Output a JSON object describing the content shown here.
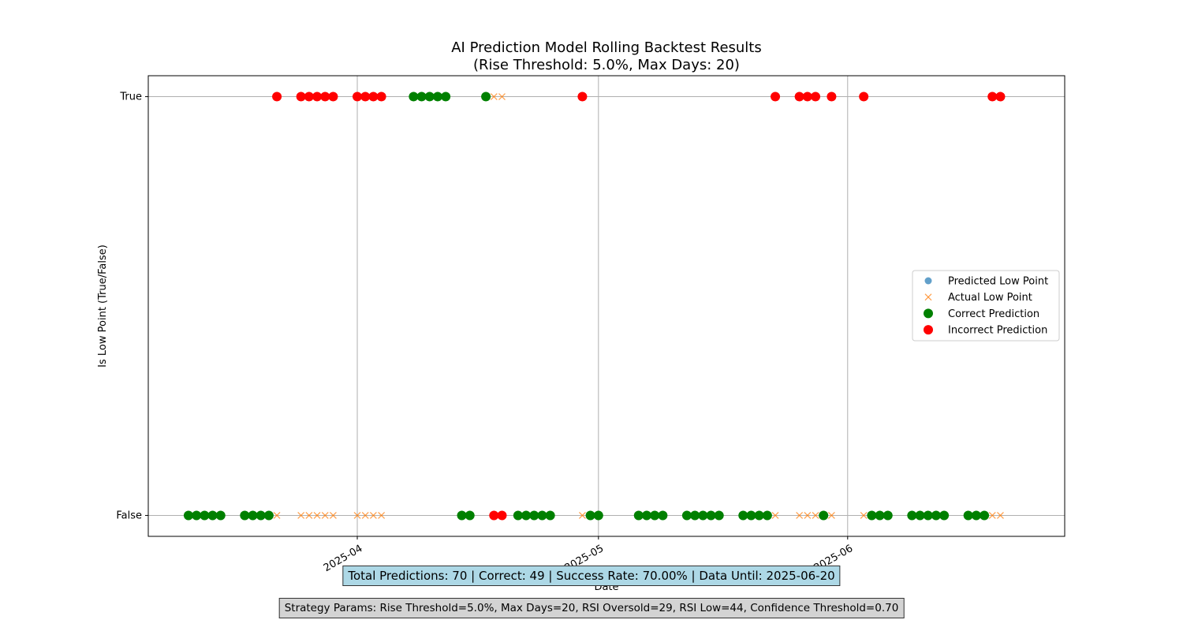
{
  "chart_data": {
    "type": "scatter",
    "title": "AI Prediction Model Rolling Backtest Results",
    "subtitle": "(Rise Threshold: 5.0%, Max Days: 20)",
    "xlabel": "Date",
    "ylabel": "Is Low Point (True/False)",
    "x_axis_type": "date",
    "xlim": [
      "2025-03-06",
      "2025-06-28"
    ],
    "ylim": [
      -0.05,
      1.05
    ],
    "x_ticks": [
      "2025-04-01",
      "2025-05-01",
      "2025-06-01"
    ],
    "x_tick_labels": [
      "2025-04",
      "2025-05",
      "2025-06"
    ],
    "y_ticks": [
      0,
      1
    ],
    "y_tick_labels": [
      "False",
      "True"
    ],
    "grid": true,
    "legend_placement": "center-right",
    "legend": [
      {
        "label": "Predicted Low Point",
        "marker": "circle-small",
        "color": "#1f77b4"
      },
      {
        "label": "Actual Low Point",
        "marker": "x",
        "color": "#ff7f0e"
      },
      {
        "label": "Correct Prediction",
        "marker": "circle",
        "color": "#008000"
      },
      {
        "label": "Incorrect Prediction",
        "marker": "circle",
        "color": "#ff0000"
      }
    ],
    "series": [
      {
        "name": "Predicted Low Point",
        "color": "#1f77b4",
        "points": [
          {
            "x": "2025-03-11",
            "y": false
          },
          {
            "x": "2025-03-12",
            "y": false
          },
          {
            "x": "2025-03-13",
            "y": false
          },
          {
            "x": "2025-03-14",
            "y": false
          },
          {
            "x": "2025-03-15",
            "y": false
          },
          {
            "x": "2025-03-18",
            "y": false
          },
          {
            "x": "2025-03-19",
            "y": false
          },
          {
            "x": "2025-03-20",
            "y": false
          },
          {
            "x": "2025-03-21",
            "y": false
          },
          {
            "x": "2025-03-22",
            "y": true
          },
          {
            "x": "2025-03-25",
            "y": true
          },
          {
            "x": "2025-03-26",
            "y": true
          },
          {
            "x": "2025-03-27",
            "y": true
          },
          {
            "x": "2025-03-28",
            "y": true
          },
          {
            "x": "2025-03-29",
            "y": true
          },
          {
            "x": "2025-04-01",
            "y": true
          },
          {
            "x": "2025-04-02",
            "y": true
          },
          {
            "x": "2025-04-03",
            "y": true
          },
          {
            "x": "2025-04-04",
            "y": true
          },
          {
            "x": "2025-04-08",
            "y": true
          },
          {
            "x": "2025-04-09",
            "y": true
          },
          {
            "x": "2025-04-10",
            "y": true
          },
          {
            "x": "2025-04-11",
            "y": true
          },
          {
            "x": "2025-04-12",
            "y": true
          },
          {
            "x": "2025-04-14",
            "y": false
          },
          {
            "x": "2025-04-15",
            "y": false
          },
          {
            "x": "2025-04-17",
            "y": true
          },
          {
            "x": "2025-04-18",
            "y": false
          },
          {
            "x": "2025-04-19",
            "y": false
          },
          {
            "x": "2025-04-21",
            "y": false
          },
          {
            "x": "2025-04-22",
            "y": false
          },
          {
            "x": "2025-04-23",
            "y": false
          },
          {
            "x": "2025-04-24",
            "y": false
          },
          {
            "x": "2025-04-25",
            "y": false
          },
          {
            "x": "2025-04-29",
            "y": true
          },
          {
            "x": "2025-04-30",
            "y": false
          },
          {
            "x": "2025-05-01",
            "y": false
          },
          {
            "x": "2025-05-06",
            "y": false
          },
          {
            "x": "2025-05-07",
            "y": false
          },
          {
            "x": "2025-05-08",
            "y": false
          },
          {
            "x": "2025-05-09",
            "y": false
          },
          {
            "x": "2025-05-12",
            "y": false
          },
          {
            "x": "2025-05-13",
            "y": false
          },
          {
            "x": "2025-05-14",
            "y": false
          },
          {
            "x": "2025-05-15",
            "y": false
          },
          {
            "x": "2025-05-16",
            "y": false
          },
          {
            "x": "2025-05-19",
            "y": false
          },
          {
            "x": "2025-05-20",
            "y": false
          },
          {
            "x": "2025-05-21",
            "y": false
          },
          {
            "x": "2025-05-22",
            "y": false
          },
          {
            "x": "2025-05-23",
            "y": true
          },
          {
            "x": "2025-05-26",
            "y": true
          },
          {
            "x": "2025-05-27",
            "y": true
          },
          {
            "x": "2025-05-28",
            "y": true
          },
          {
            "x": "2025-05-29",
            "y": false
          },
          {
            "x": "2025-05-30",
            "y": true
          },
          {
            "x": "2025-06-03",
            "y": true
          },
          {
            "x": "2025-06-04",
            "y": false
          },
          {
            "x": "2025-06-05",
            "y": false
          },
          {
            "x": "2025-06-06",
            "y": false
          },
          {
            "x": "2025-06-09",
            "y": false
          },
          {
            "x": "2025-06-10",
            "y": false
          },
          {
            "x": "2025-06-11",
            "y": false
          },
          {
            "x": "2025-06-12",
            "y": false
          },
          {
            "x": "2025-06-13",
            "y": false
          },
          {
            "x": "2025-06-16",
            "y": false
          },
          {
            "x": "2025-06-17",
            "y": false
          },
          {
            "x": "2025-06-18",
            "y": false
          },
          {
            "x": "2025-06-19",
            "y": true
          },
          {
            "x": "2025-06-20",
            "y": true
          }
        ]
      },
      {
        "name": "Actual Low Point",
        "color": "#ff7f0e",
        "points": [
          {
            "x": "2025-03-11",
            "y": false
          },
          {
            "x": "2025-03-12",
            "y": false
          },
          {
            "x": "2025-03-13",
            "y": false
          },
          {
            "x": "2025-03-14",
            "y": false
          },
          {
            "x": "2025-03-15",
            "y": false
          },
          {
            "x": "2025-03-18",
            "y": false
          },
          {
            "x": "2025-03-19",
            "y": false
          },
          {
            "x": "2025-03-20",
            "y": false
          },
          {
            "x": "2025-03-21",
            "y": false
          },
          {
            "x": "2025-03-22",
            "y": false
          },
          {
            "x": "2025-03-25",
            "y": false
          },
          {
            "x": "2025-03-26",
            "y": false
          },
          {
            "x": "2025-03-27",
            "y": false
          },
          {
            "x": "2025-03-28",
            "y": false
          },
          {
            "x": "2025-03-29",
            "y": false
          },
          {
            "x": "2025-04-01",
            "y": false
          },
          {
            "x": "2025-04-02",
            "y": false
          },
          {
            "x": "2025-04-03",
            "y": false
          },
          {
            "x": "2025-04-04",
            "y": false
          },
          {
            "x": "2025-04-08",
            "y": true
          },
          {
            "x": "2025-04-09",
            "y": true
          },
          {
            "x": "2025-04-10",
            "y": true
          },
          {
            "x": "2025-04-11",
            "y": true
          },
          {
            "x": "2025-04-12",
            "y": true
          },
          {
            "x": "2025-04-14",
            "y": false
          },
          {
            "x": "2025-04-15",
            "y": false
          },
          {
            "x": "2025-04-17",
            "y": true
          },
          {
            "x": "2025-04-18",
            "y": true
          },
          {
            "x": "2025-04-19",
            "y": true
          },
          {
            "x": "2025-04-21",
            "y": false
          },
          {
            "x": "2025-04-22",
            "y": false
          },
          {
            "x": "2025-04-23",
            "y": false
          },
          {
            "x": "2025-04-24",
            "y": false
          },
          {
            "x": "2025-04-25",
            "y": false
          },
          {
            "x": "2025-04-29",
            "y": false
          },
          {
            "x": "2025-04-30",
            "y": false
          },
          {
            "x": "2025-05-01",
            "y": false
          },
          {
            "x": "2025-05-06",
            "y": false
          },
          {
            "x": "2025-05-07",
            "y": false
          },
          {
            "x": "2025-05-08",
            "y": false
          },
          {
            "x": "2025-05-09",
            "y": false
          },
          {
            "x": "2025-05-12",
            "y": false
          },
          {
            "x": "2025-05-13",
            "y": false
          },
          {
            "x": "2025-05-14",
            "y": false
          },
          {
            "x": "2025-05-15",
            "y": false
          },
          {
            "x": "2025-05-16",
            "y": false
          },
          {
            "x": "2025-05-19",
            "y": false
          },
          {
            "x": "2025-05-20",
            "y": false
          },
          {
            "x": "2025-05-21",
            "y": false
          },
          {
            "x": "2025-05-22",
            "y": false
          },
          {
            "x": "2025-05-23",
            "y": false
          },
          {
            "x": "2025-05-26",
            "y": false
          },
          {
            "x": "2025-05-27",
            "y": false
          },
          {
            "x": "2025-05-28",
            "y": false
          },
          {
            "x": "2025-05-29",
            "y": false
          },
          {
            "x": "2025-05-30",
            "y": false
          },
          {
            "x": "2025-06-03",
            "y": false
          },
          {
            "x": "2025-06-04",
            "y": false
          },
          {
            "x": "2025-06-05",
            "y": false
          },
          {
            "x": "2025-06-06",
            "y": false
          },
          {
            "x": "2025-06-09",
            "y": false
          },
          {
            "x": "2025-06-10",
            "y": false
          },
          {
            "x": "2025-06-11",
            "y": false
          },
          {
            "x": "2025-06-12",
            "y": false
          },
          {
            "x": "2025-06-13",
            "y": false
          },
          {
            "x": "2025-06-16",
            "y": false
          },
          {
            "x": "2025-06-17",
            "y": false
          },
          {
            "x": "2025-06-18",
            "y": false
          },
          {
            "x": "2025-06-19",
            "y": false
          },
          {
            "x": "2025-06-20",
            "y": false
          }
        ]
      }
    ]
  },
  "stats_text": "Total Predictions: 70 | Correct: 49 | Success Rate: 70.00% | Data Until: 2025-06-20",
  "params_text": "Strategy Params: Rise Threshold=5.0%, Max Days=20, RSI Oversold=29, RSI Low=44, Confidence Threshold=0.70"
}
